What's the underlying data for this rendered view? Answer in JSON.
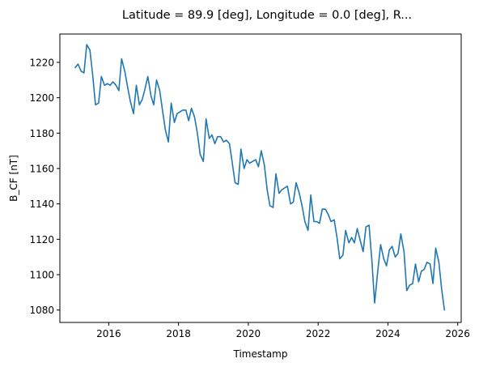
{
  "chart_data": {
    "type": "line",
    "title": "Latitude = 89.9 [deg], Longitude = 0.0 [deg], R...",
    "xlabel": "Timestamp",
    "ylabel": "B_CF [nT]",
    "xlim": [
      2014.6,
      2026.1
    ],
    "ylim": [
      1073,
      1236
    ],
    "x_ticks": [
      2016,
      2018,
      2020,
      2022,
      2024,
      2026
    ],
    "x_tick_labels": [
      "2016",
      "2018",
      "2020",
      "2022",
      "2024",
      "2026"
    ],
    "y_ticks": [
      1080,
      1100,
      1120,
      1140,
      1160,
      1180,
      1200,
      1220
    ],
    "y_tick_labels": [
      "1080",
      "1100",
      "1120",
      "1140",
      "1160",
      "1180",
      "1200",
      "1220"
    ],
    "grid": false,
    "series": [
      {
        "color": "#1f77b4",
        "x": [
          2015.04,
          2015.12,
          2015.21,
          2015.29,
          2015.37,
          2015.46,
          2015.54,
          2015.62,
          2015.71,
          2015.79,
          2015.88,
          2015.96,
          2016.04,
          2016.12,
          2016.21,
          2016.29,
          2016.37,
          2016.46,
          2016.54,
          2016.62,
          2016.71,
          2016.79,
          2016.88,
          2016.96,
          2017.04,
          2017.12,
          2017.21,
          2017.29,
          2017.37,
          2017.46,
          2017.54,
          2017.62,
          2017.71,
          2017.79,
          2017.88,
          2017.96,
          2018.04,
          2018.12,
          2018.21,
          2018.29,
          2018.37,
          2018.46,
          2018.54,
          2018.62,
          2018.71,
          2018.79,
          2018.88,
          2018.96,
          2019.04,
          2019.12,
          2019.21,
          2019.29,
          2019.37,
          2019.46,
          2019.54,
          2019.62,
          2019.71,
          2019.79,
          2019.88,
          2019.96,
          2020.04,
          2020.12,
          2020.21,
          2020.29,
          2020.37,
          2020.46,
          2020.54,
          2020.62,
          2020.71,
          2020.79,
          2020.88,
          2020.96,
          2021.04,
          2021.12,
          2021.21,
          2021.29,
          2021.37,
          2021.46,
          2021.54,
          2021.62,
          2021.71,
          2021.79,
          2021.88,
          2021.96,
          2022.04,
          2022.12,
          2022.21,
          2022.29,
          2022.37,
          2022.46,
          2022.54,
          2022.62,
          2022.71,
          2022.79,
          2022.88,
          2022.96,
          2023.04,
          2023.12,
          2023.21,
          2023.29,
          2023.37,
          2023.46,
          2023.54,
          2023.62,
          2023.71,
          2023.79,
          2023.88,
          2023.96,
          2024.04,
          2024.12,
          2024.21,
          2024.29,
          2024.37,
          2024.46,
          2024.54,
          2024.62,
          2024.71,
          2024.79,
          2024.88,
          2024.96,
          2025.04,
          2025.12,
          2025.21,
          2025.29,
          2025.37,
          2025.46,
          2025.54,
          2025.62
        ],
        "values": [
          1217,
          1219,
          1215,
          1214,
          1230,
          1227,
          1213,
          1196,
          1197,
          1212,
          1207,
          1208,
          1207,
          1209,
          1207,
          1204,
          1222,
          1215,
          1206,
          1198,
          1191,
          1207,
          1196,
          1199,
          1205,
          1212,
          1201,
          1196,
          1210,
          1204,
          1193,
          1182,
          1175,
          1197,
          1186,
          1191,
          1192,
          1193,
          1193,
          1187,
          1194,
          1189,
          1180,
          1168,
          1164,
          1188,
          1177,
          1179,
          1174,
          1178,
          1178,
          1175,
          1176,
          1174,
          1163,
          1152,
          1151,
          1171,
          1160,
          1165,
          1163,
          1164,
          1165,
          1161,
          1170,
          1162,
          1148,
          1139,
          1138,
          1157,
          1146,
          1148,
          1149,
          1150,
          1140,
          1141,
          1152,
          1146,
          1139,
          1130,
          1125,
          1145,
          1130,
          1130,
          1129,
          1137,
          1137,
          1134,
          1130,
          1131,
          1121,
          1109,
          1111,
          1125,
          1118,
          1121,
          1118,
          1126,
          1119,
          1113,
          1127,
          1128,
          1108,
          1084,
          1102,
          1117,
          1109,
          1105,
          1114,
          1116,
          1110,
          1112,
          1123,
          1113,
          1091,
          1094,
          1095,
          1106,
          1096,
          1102,
          1103,
          1107,
          1106,
          1095,
          1115,
          1107,
          1092,
          1080
        ]
      }
    ]
  }
}
